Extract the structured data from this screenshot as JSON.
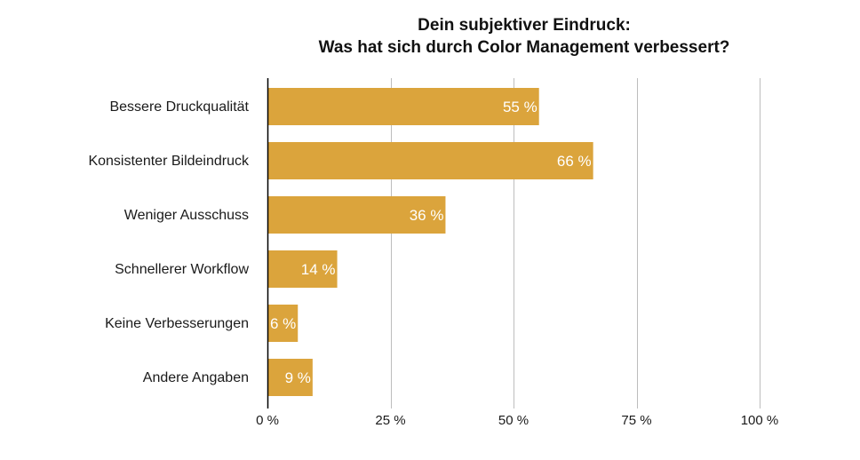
{
  "chart_data": {
    "type": "bar",
    "orientation": "horizontal",
    "title": [
      "Dein subjektiver Eindruck:",
      "Was hat sich durch Color Management verbessert?"
    ],
    "categories": [
      "Bessere Druckqualität",
      "Konsistenter Bildeindruck",
      "Weniger Ausschuss",
      "Schnellerer Workflow",
      "Keine Verbesserungen",
      "Andere Angaben"
    ],
    "values": [
      55,
      66,
      36,
      14,
      6,
      9
    ],
    "value_labels": [
      "55 %",
      "66 %",
      "36 %",
      "14 %",
      "6 %",
      "9 %"
    ],
    "xlim": [
      0,
      100
    ],
    "xticks": [
      0,
      25,
      50,
      75,
      100
    ],
    "xtick_labels": [
      "0 %",
      "25 %",
      "50 %",
      "75 %",
      "100 %"
    ],
    "grid": true,
    "xlabel": "",
    "ylabel": "",
    "colors": {
      "bar": "#DBA43C",
      "grid": "#BDBDBD",
      "axis": "#000000",
      "value_text": "#FFFFFF"
    }
  }
}
